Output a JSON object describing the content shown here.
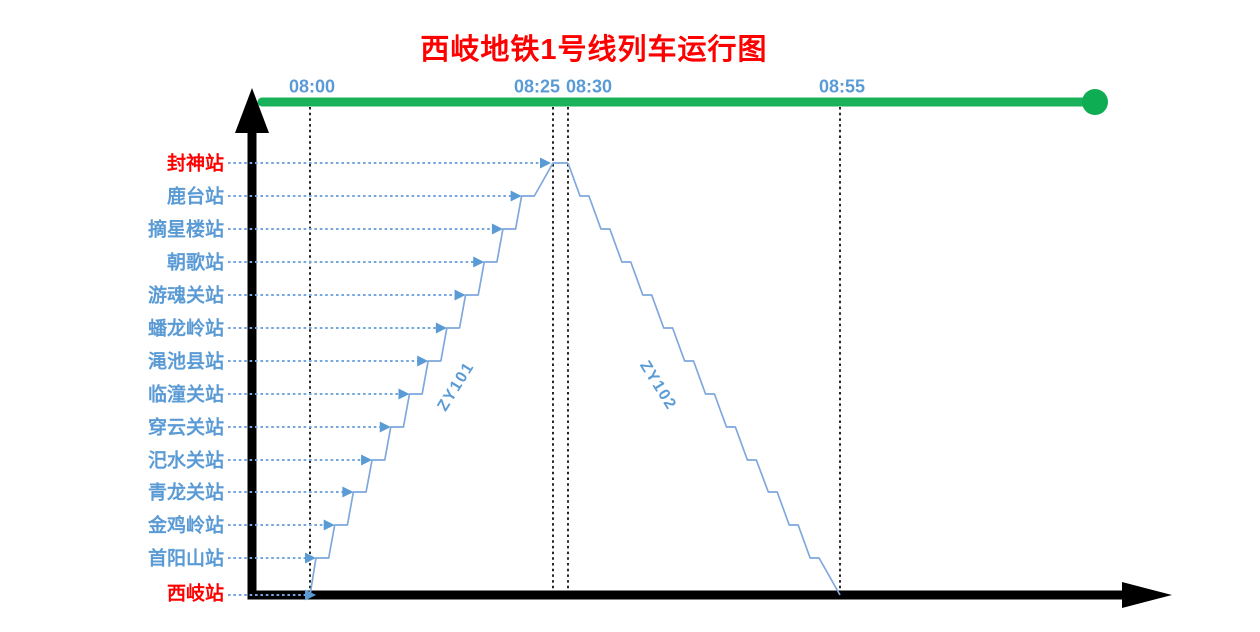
{
  "title": "西岐地铁1号线列车运行图",
  "colors": {
    "title_red": "#FF0000",
    "terminal_station_red": "#FF0000",
    "station_blue": "#5B9BD5",
    "time_blue": "#5B9BD5",
    "train_line_blue": "#7FA8DC",
    "leader_blue": "#74A7DE",
    "timeline_green": "#0EAD53",
    "axis_black": "#000000"
  },
  "chart_data": {
    "type": "line",
    "title": "西岐地铁1号线列车运行图",
    "x_axis": {
      "kind": "time",
      "grid": "dotted"
    },
    "time_ticks": [
      "08:00",
      "08:25",
      "08:30",
      "08:55"
    ],
    "stations_top_to_bottom": [
      "封神站",
      "鹿台站",
      "摘星楼站",
      "朝歌站",
      "游魂关站",
      "蟠龙岭站",
      "渑池县站",
      "临潼关站",
      "穿云关站",
      "汜水关站",
      "青龙关站",
      "金鸡岭站",
      "首阳山站",
      "西岐站"
    ],
    "terminal_stations": [
      "封神站",
      "西岐站"
    ],
    "trains": [
      {
        "id": "ZY101",
        "direction": "up",
        "from": "西岐站",
        "depart": "08:00",
        "to": "封神站",
        "arrive": "08:25"
      },
      {
        "id": "ZY102",
        "direction": "down",
        "from": "封神站",
        "depart": "08:30",
        "to": "西岐站",
        "arrive": "08:55"
      }
    ]
  }
}
